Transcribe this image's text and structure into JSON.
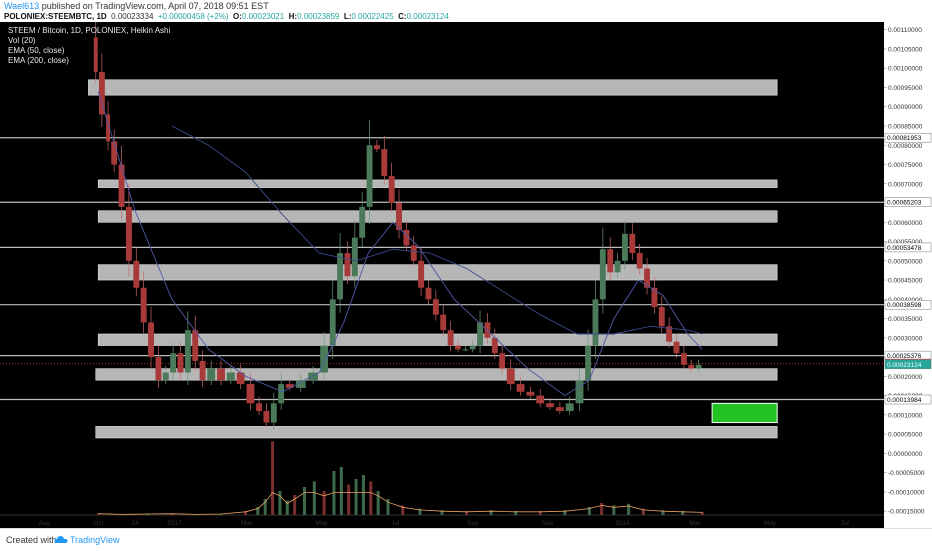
{
  "header": {
    "author": "Wael613",
    "published": "published on TradingView.com, April 07, 2018 09:51 EST",
    "symbol": "POLONIEX:STEEMBTC, 1D",
    "last_price": "0.00023334",
    "change": "+0.00000458 (+2%)",
    "o_label": "O:",
    "o_value": "0.00023021",
    "h_label": "H:",
    "h_value": "0.00023859",
    "l_label": "L:",
    "l_value": "0.00022425",
    "c_label": "C:",
    "c_value": "0.00023124"
  },
  "legend": {
    "title": "STEEM / Bitcoin, 1D, POLONIEX, Heikin Ashi",
    "indicators": [
      "Vol (20)",
      "EMA (50, close)",
      "EMA (200, close)"
    ]
  },
  "footer": {
    "created_with": "Created with",
    "brand": "TradingView"
  },
  "colors": {
    "background": "#000000",
    "up_candle": "#4a7a5a",
    "down_candle": "#a83a3a",
    "zone_fill": "#cfcfcf",
    "horizontal_line": "#bdbdbd",
    "ema_line": "#4f5aa8",
    "volume_ma": "#e8a060",
    "target_box": "#22c322",
    "label_red": "#e53935",
    "label_green": "#26a69a"
  },
  "chart_data": {
    "type": "line",
    "title": "STEEM / Bitcoin, 1D, POLONIEX, Heikin Ashi",
    "ylim": [
      -0.00016,
      0.00112
    ],
    "y_ticks": [
      "0.00110000",
      "0.00105000",
      "0.00100000",
      "0.00095000",
      "0.00090000",
      "0.00085000",
      "0.00080000",
      "0.00075000",
      "0.00070000",
      "0.00065000",
      "0.00060000",
      "0.00055000",
      "0.00050000",
      "0.00045000",
      "0.00040000",
      "0.00035000",
      "0.00030000",
      "0.00025000",
      "0.00020000",
      "0.00015000",
      "0.00010000",
      "0.00005000",
      "0.00000000",
      "-0.00005000",
      "-0.00010000",
      "-0.00015000"
    ],
    "x_ticks": [
      "Aug",
      "Oct",
      "14",
      "2017",
      "Mar",
      "May",
      "Jul",
      "Sep",
      "Nov",
      "2018",
      "Mar",
      "May",
      "Jul"
    ],
    "x_tick_values": [
      -44,
      0,
      30,
      62,
      121,
      182,
      242,
      305,
      366,
      427,
      486,
      547,
      608
    ],
    "xlim": [
      -80,
      640
    ],
    "price_series": [
      {
        "x": -4,
        "y": 0.00108
      },
      {
        "x": 0,
        "y": 0.00099
      },
      {
        "x": 6,
        "y": 0.00088
      },
      {
        "x": 10,
        "y": 0.00081
      },
      {
        "x": 16,
        "y": 0.00075
      },
      {
        "x": 22,
        "y": 0.00064
      },
      {
        "x": 28,
        "y": 0.0005
      },
      {
        "x": 34,
        "y": 0.00043
      },
      {
        "x": 40,
        "y": 0.00034
      },
      {
        "x": 46,
        "y": 0.00025
      },
      {
        "x": 52,
        "y": 0.00019
      },
      {
        "x": 58,
        "y": 0.00021
      },
      {
        "x": 64,
        "y": 0.00026
      },
      {
        "x": 70,
        "y": 0.00021
      },
      {
        "x": 76,
        "y": 0.00032
      },
      {
        "x": 82,
        "y": 0.00024
      },
      {
        "x": 88,
        "y": 0.00019
      },
      {
        "x": 96,
        "y": 0.00022
      },
      {
        "x": 104,
        "y": 0.00019
      },
      {
        "x": 112,
        "y": 0.00021
      },
      {
        "x": 120,
        "y": 0.00018
      },
      {
        "x": 128,
        "y": 0.00013
      },
      {
        "x": 134,
        "y": 0.00011
      },
      {
        "x": 140,
        "y": 8e-05
      },
      {
        "x": 146,
        "y": 0.00013
      },
      {
        "x": 152,
        "y": 0.00018
      },
      {
        "x": 160,
        "y": 0.00017
      },
      {
        "x": 170,
        "y": 0.00019
      },
      {
        "x": 180,
        "y": 0.00021
      },
      {
        "x": 188,
        "y": 0.00028
      },
      {
        "x": 194,
        "y": 0.0004
      },
      {
        "x": 200,
        "y": 0.00052
      },
      {
        "x": 206,
        "y": 0.00046
      },
      {
        "x": 212,
        "y": 0.00056
      },
      {
        "x": 218,
        "y": 0.00064
      },
      {
        "x": 224,
        "y": 0.0008
      },
      {
        "x": 230,
        "y": 0.00079
      },
      {
        "x": 236,
        "y": 0.00072
      },
      {
        "x": 242,
        "y": 0.00065
      },
      {
        "x": 248,
        "y": 0.00058
      },
      {
        "x": 254,
        "y": 0.00054
      },
      {
        "x": 260,
        "y": 0.0005
      },
      {
        "x": 266,
        "y": 0.00043
      },
      {
        "x": 272,
        "y": 0.0004
      },
      {
        "x": 278,
        "y": 0.00036
      },
      {
        "x": 284,
        "y": 0.00032
      },
      {
        "x": 290,
        "y": 0.00028
      },
      {
        "x": 296,
        "y": 0.00027
      },
      {
        "x": 302,
        "y": 0.00027
      },
      {
        "x": 308,
        "y": 0.00028
      },
      {
        "x": 314,
        "y": 0.00034
      },
      {
        "x": 320,
        "y": 0.0003
      },
      {
        "x": 326,
        "y": 0.00026
      },
      {
        "x": 332,
        "y": 0.00022
      },
      {
        "x": 340,
        "y": 0.00018
      },
      {
        "x": 348,
        "y": 0.00016
      },
      {
        "x": 356,
        "y": 0.00015
      },
      {
        "x": 364,
        "y": 0.00013
      },
      {
        "x": 372,
        "y": 0.00012
      },
      {
        "x": 380,
        "y": 0.00011
      },
      {
        "x": 388,
        "y": 0.00013
      },
      {
        "x": 396,
        "y": 0.00019
      },
      {
        "x": 402,
        "y": 0.00028
      },
      {
        "x": 408,
        "y": 0.0004
      },
      {
        "x": 414,
        "y": 0.00053
      },
      {
        "x": 420,
        "y": 0.00047
      },
      {
        "x": 426,
        "y": 0.0005
      },
      {
        "x": 432,
        "y": 0.00057
      },
      {
        "x": 438,
        "y": 0.00052
      },
      {
        "x": 444,
        "y": 0.00048
      },
      {
        "x": 450,
        "y": 0.00043
      },
      {
        "x": 456,
        "y": 0.00038
      },
      {
        "x": 462,
        "y": 0.00033
      },
      {
        "x": 468,
        "y": 0.00029
      },
      {
        "x": 474,
        "y": 0.00026
      },
      {
        "x": 480,
        "y": 0.00023
      },
      {
        "x": 486,
        "y": 0.00022
      },
      {
        "x": 492,
        "y": 0.00023
      }
    ],
    "ema_50": [
      {
        "x": 0,
        "y": 0.00094
      },
      {
        "x": 30,
        "y": 0.00063
      },
      {
        "x": 60,
        "y": 0.0004
      },
      {
        "x": 90,
        "y": 0.00027
      },
      {
        "x": 120,
        "y": 0.0002
      },
      {
        "x": 150,
        "y": 0.00016
      },
      {
        "x": 180,
        "y": 0.00021
      },
      {
        "x": 200,
        "y": 0.00034
      },
      {
        "x": 220,
        "y": 0.00052
      },
      {
        "x": 240,
        "y": 0.0006
      },
      {
        "x": 260,
        "y": 0.00054
      },
      {
        "x": 290,
        "y": 0.0004
      },
      {
        "x": 320,
        "y": 0.00031
      },
      {
        "x": 350,
        "y": 0.00022
      },
      {
        "x": 380,
        "y": 0.00015
      },
      {
        "x": 400,
        "y": 0.00019
      },
      {
        "x": 420,
        "y": 0.00035
      },
      {
        "x": 440,
        "y": 0.00045
      },
      {
        "x": 460,
        "y": 0.00041
      },
      {
        "x": 480,
        "y": 0.00031
      },
      {
        "x": 492,
        "y": 0.00027
      }
    ],
    "ema_200": [
      {
        "x": 60,
        "y": 0.00085
      },
      {
        "x": 90,
        "y": 0.0008
      },
      {
        "x": 120,
        "y": 0.00073
      },
      {
        "x": 150,
        "y": 0.00062
      },
      {
        "x": 180,
        "y": 0.00052
      },
      {
        "x": 210,
        "y": 0.0005
      },
      {
        "x": 240,
        "y": 0.00053
      },
      {
        "x": 270,
        "y": 0.00052
      },
      {
        "x": 300,
        "y": 0.00048
      },
      {
        "x": 330,
        "y": 0.00042
      },
      {
        "x": 360,
        "y": 0.00036
      },
      {
        "x": 390,
        "y": 0.00031
      },
      {
        "x": 420,
        "y": 0.00031
      },
      {
        "x": 450,
        "y": 0.00033
      },
      {
        "x": 480,
        "y": 0.00032
      },
      {
        "x": 492,
        "y": 0.00031
      }
    ],
    "volume": [
      {
        "x": 0,
        "v": 0.02
      },
      {
        "x": 20,
        "v": 0.01
      },
      {
        "x": 40,
        "v": 0.015
      },
      {
        "x": 60,
        "v": 0.02
      },
      {
        "x": 80,
        "v": 0.01
      },
      {
        "x": 100,
        "v": 0.015
      },
      {
        "x": 120,
        "v": 0.05
      },
      {
        "x": 130,
        "v": 0.1
      },
      {
        "x": 136,
        "v": 0.2
      },
      {
        "x": 142,
        "v": 0.92
      },
      {
        "x": 148,
        "v": 0.3
      },
      {
        "x": 154,
        "v": 0.18
      },
      {
        "x": 160,
        "v": 0.25
      },
      {
        "x": 168,
        "v": 0.35
      },
      {
        "x": 176,
        "v": 0.42
      },
      {
        "x": 184,
        "v": 0.3
      },
      {
        "x": 192,
        "v": 0.55
      },
      {
        "x": 198,
        "v": 0.6
      },
      {
        "x": 204,
        "v": 0.38
      },
      {
        "x": 210,
        "v": 0.45
      },
      {
        "x": 216,
        "v": 0.5
      },
      {
        "x": 222,
        "v": 0.42
      },
      {
        "x": 228,
        "v": 0.3
      },
      {
        "x": 236,
        "v": 0.2
      },
      {
        "x": 248,
        "v": 0.12
      },
      {
        "x": 262,
        "v": 0.08
      },
      {
        "x": 280,
        "v": 0.06
      },
      {
        "x": 300,
        "v": 0.05
      },
      {
        "x": 320,
        "v": 0.06
      },
      {
        "x": 340,
        "v": 0.05
      },
      {
        "x": 360,
        "v": 0.05
      },
      {
        "x": 380,
        "v": 0.06
      },
      {
        "x": 400,
        "v": 0.1
      },
      {
        "x": 410,
        "v": 0.15
      },
      {
        "x": 420,
        "v": 0.12
      },
      {
        "x": 432,
        "v": 0.14
      },
      {
        "x": 444,
        "v": 0.08
      },
      {
        "x": 460,
        "v": 0.06
      },
      {
        "x": 476,
        "v": 0.05
      },
      {
        "x": 492,
        "v": 0.04
      }
    ],
    "zones": [
      {
        "x0": -8,
        "x1": 553,
        "y_low": 0.00093,
        "y_high": 0.00097
      },
      {
        "x0": 0,
        "x1": 553,
        "y_low": 0.00069,
        "y_high": 0.00071
      },
      {
        "x0": 0,
        "x1": 553,
        "y_low": 0.0006,
        "y_high": 0.00063
      },
      {
        "x0": 0,
        "x1": 553,
        "y_low": 0.00045,
        "y_high": 0.00049
      },
      {
        "x0": 0,
        "x1": 553,
        "y_low": 0.00028,
        "y_high": 0.00031
      },
      {
        "x0": -2,
        "x1": 553,
        "y_low": 0.00019,
        "y_high": 0.00022
      },
      {
        "x0": -2,
        "x1": 553,
        "y_low": 4e-05,
        "y_high": 7e-05
      }
    ],
    "horizontal_lines": [
      0.00081953,
      0.00065203,
      0.00053478,
      0.00038598,
      0.00025376,
      0.00013984
    ],
    "target_box": {
      "x0": 500,
      "x1": 553,
      "y_low": 8e-05,
      "y_high": 0.00013
    },
    "price_labels": [
      {
        "text": "0.00081953",
        "value": 0.00081953,
        "style": "white"
      },
      {
        "text": "0.00065203",
        "value": 0.00065203,
        "style": "white"
      },
      {
        "text": "0.00053478",
        "value": 0.00053478,
        "style": "white"
      },
      {
        "text": "0.00038598",
        "value": 0.00038598,
        "style": "white"
      },
      {
        "text": "0.00025376",
        "value": 0.00025376,
        "style": "white"
      },
      {
        "text": "0.00023334",
        "value": 0.00023334,
        "style": "red"
      },
      {
        "text": "0.00023124",
        "value": 0.00023124,
        "style": "green"
      },
      {
        "text": "0.00013984",
        "value": 0.00013984,
        "style": "white"
      }
    ]
  }
}
